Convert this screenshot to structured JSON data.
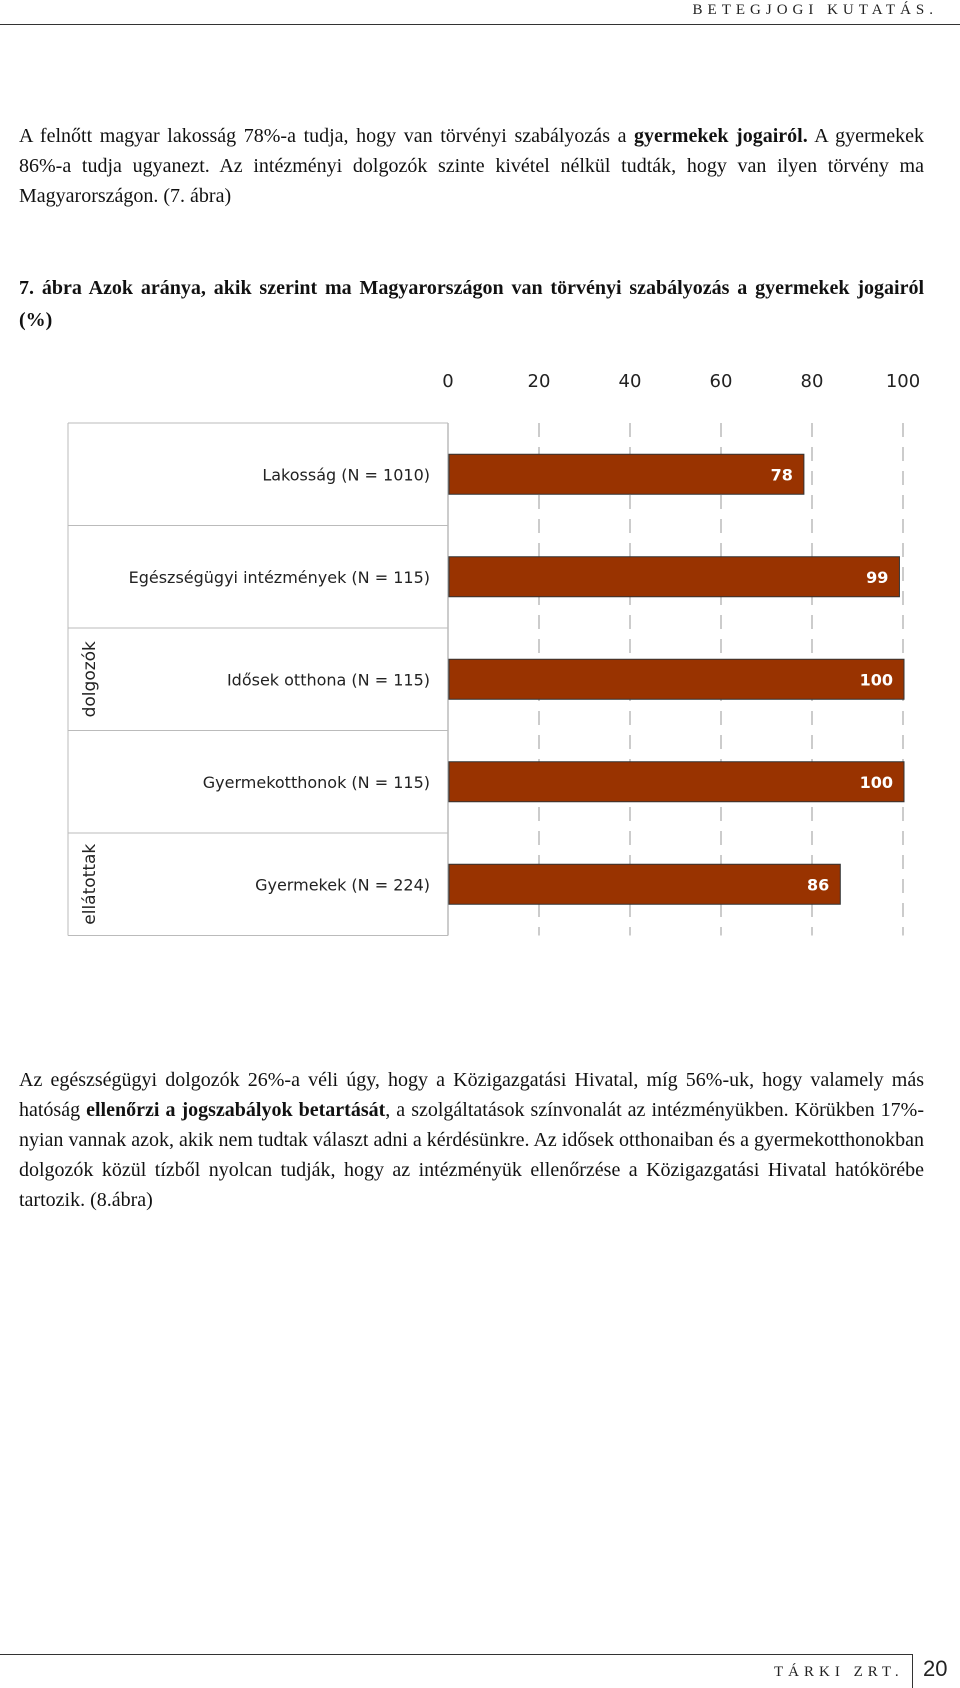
{
  "header": {
    "title": "BETEGJOGI KUTATÁS."
  },
  "paragraph1": {
    "t1": "A felnőtt magyar lakosság 78%-a tudja, hogy van törvényi szabályozás a ",
    "b1": "gyermekek jogairól.",
    "t2": " A gyermekek 86%-a tudja ugyanezt. Az intézményi dolgozók szinte kivétel nélkül tudták, hogy van ilyen törvény ma Magyarországon. (7. ábra)"
  },
  "figure": {
    "title": "7. ábra Azok aránya, akik szerint ma Magyarországon van törvényi szabályozás a gyermekek jogairól (%)"
  },
  "chart_data": {
    "type": "bar",
    "orientation": "horizontal",
    "xlim": [
      0,
      100
    ],
    "ticks": [
      "0",
      "20",
      "40",
      "60",
      "80",
      "100"
    ],
    "tick_values": [
      0,
      20,
      40,
      60,
      80,
      100
    ],
    "categories": [
      "Lakosság (N = 1010)",
      "Egészségügyi intézmények (N = 115)",
      "Idősek otthona (N = 115)",
      "Gyermekotthonok (N = 115)",
      "Gyermekek (N = 224)"
    ],
    "values": [
      78,
      99,
      100,
      100,
      86
    ],
    "value_labels": [
      "78",
      "99",
      "100",
      "100",
      "86"
    ],
    "group_labels": [
      "dolgozók",
      "ellátottak"
    ],
    "bar_color": "#993300",
    "grid": true
  },
  "paragraph2": {
    "t1": "Az egészségügyi dolgozók 26%-a véli úgy, hogy a Közigazgatási Hivatal, míg 56%-uk, hogy valamely más hatóság ",
    "b1": "ellenőrzi a jogszabályok betartását",
    "t2": ", a szolgáltatások színvonalát az intézményükben. Körükben 17%-nyian vannak azok, akik nem tudtak választ adni a kérdésünkre. Az idősek otthonaiban és a gyermekotthonokban dolgozók közül tízből nyolcan tudják, hogy az intézményük ellenőrzése a Közigazgatási Hivatal hatókörébe tartozik. (8.ábra)"
  },
  "footer": {
    "company": "TÁRKI ZRT.",
    "page_number": "20"
  }
}
